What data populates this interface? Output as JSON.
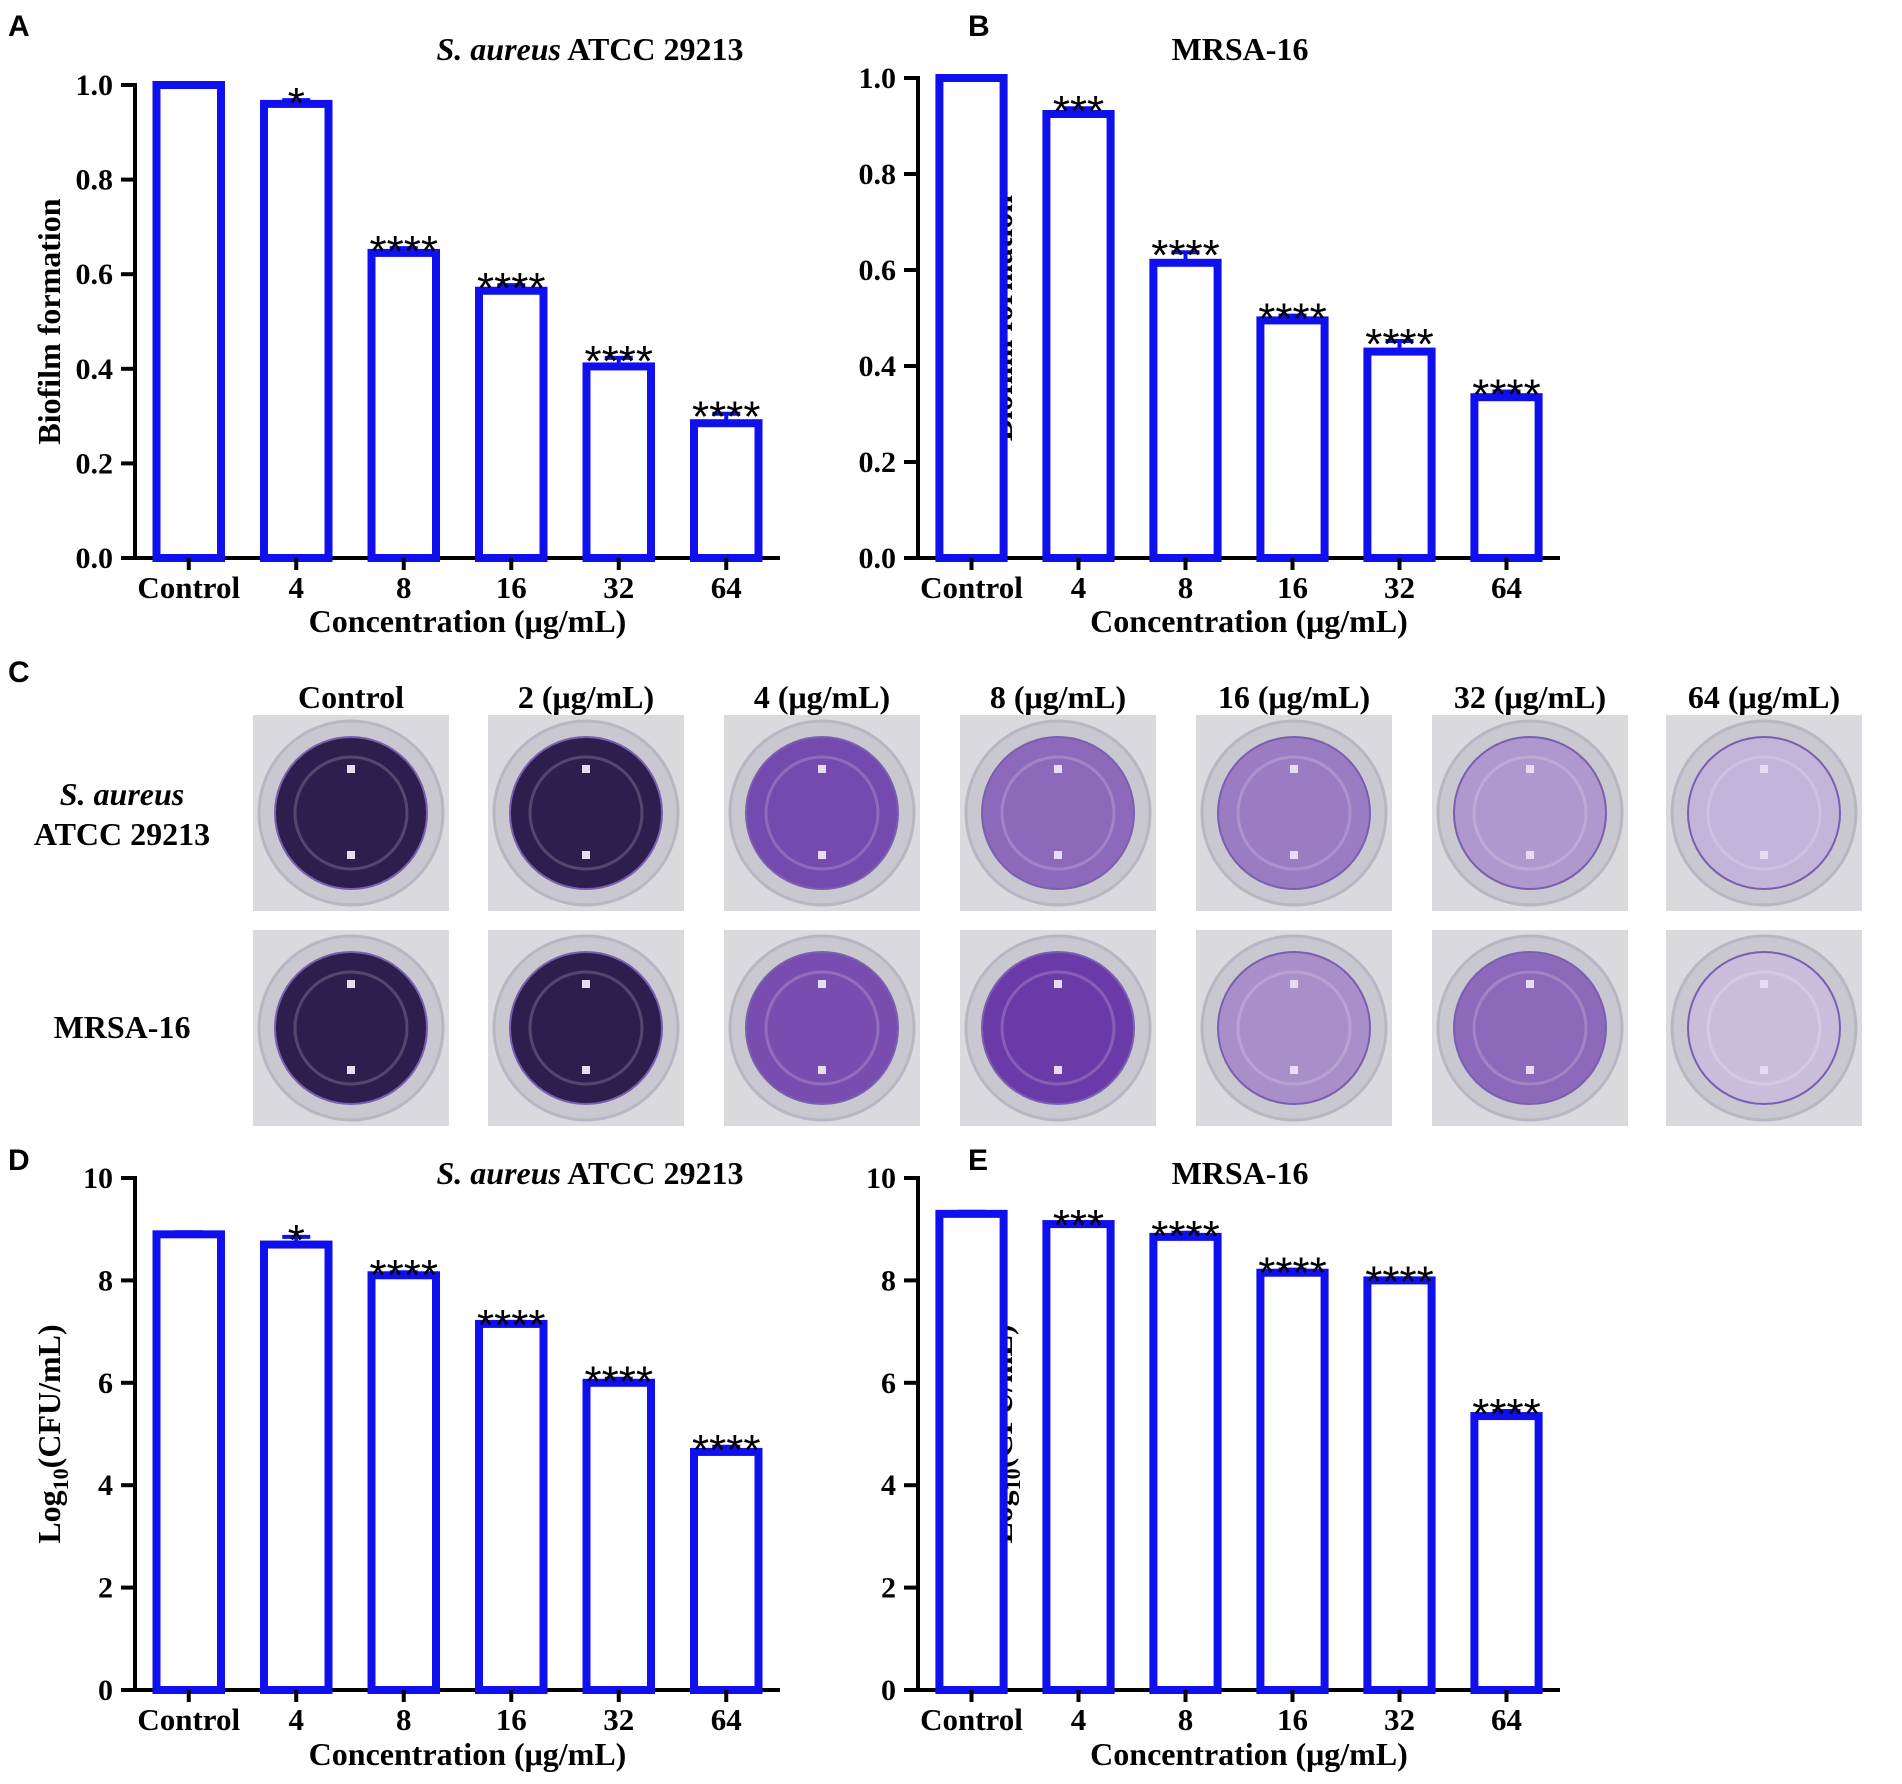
{
  "panel_letters": [
    "A",
    "B",
    "C",
    "D",
    "E"
  ],
  "colors": {
    "bar_stroke": "#1010ee",
    "axis": "#000000"
  },
  "chart_data": [
    {
      "letter": "A",
      "type": "bar",
      "title_italic": "S. aureus",
      "title_rest": " ATCC 29213",
      "xlabel": "Concentration (μg/mL)",
      "ylabel": "Biofilm formation",
      "categories": [
        "Control",
        "4",
        "8",
        "16",
        "32",
        "64"
      ],
      "values": [
        1.0,
        0.96,
        0.645,
        0.565,
        0.405,
        0.285
      ],
      "errors": [
        0.0,
        0.008,
        0.01,
        0.012,
        0.018,
        0.02
      ],
      "significance": [
        "",
        "*",
        "****",
        "****",
        "****",
        "****"
      ],
      "ylim": [
        0,
        1.0
      ],
      "yticks": [
        0.0,
        0.2,
        0.4,
        0.6,
        0.8,
        1.0
      ],
      "ytick_labels": [
        "0.0",
        "0.2",
        "0.4",
        "0.6",
        "0.8",
        "1.0"
      ]
    },
    {
      "letter": "B",
      "type": "bar",
      "title_italic": "",
      "title_rest": "MRSA-16",
      "xlabel": "Concentration (μg/mL)",
      "ylabel": "Biofilm formation",
      "categories": [
        "Control",
        "4",
        "8",
        "16",
        "32",
        "64"
      ],
      "values": [
        1.0,
        0.925,
        0.615,
        0.495,
        0.43,
        0.335
      ],
      "errors": [
        0.0,
        0.012,
        0.022,
        0.01,
        0.022,
        0.012
      ],
      "significance": [
        "",
        "***",
        "****",
        "****",
        "****",
        "****"
      ],
      "ylim": [
        0,
        1.0
      ],
      "yticks": [
        0.0,
        0.2,
        0.4,
        0.6,
        0.8,
        1.0
      ],
      "ytick_labels": [
        "0.0",
        "0.2",
        "0.4",
        "0.6",
        "0.8",
        "1.0"
      ]
    },
    {
      "letter": "D",
      "type": "bar",
      "title_italic": "S. aureus",
      "title_rest": " ATCC 29213",
      "xlabel": "Concentration (μg/mL)",
      "ylabel_main": "Log",
      "ylabel_sub": "10",
      "ylabel_rest": "(CFU/mL)",
      "categories": [
        "Control",
        "4",
        "8",
        "16",
        "32",
        "64"
      ],
      "values": [
        8.9,
        8.7,
        8.1,
        7.15,
        6.0,
        4.65
      ],
      "errors": [
        0.04,
        0.15,
        0.06,
        0.04,
        0.08,
        0.1
      ],
      "significance": [
        "",
        "*",
        "****",
        "****",
        "****",
        "****"
      ],
      "ylim": [
        0,
        10
      ],
      "yticks": [
        0,
        2,
        4,
        6,
        8,
        10
      ],
      "ytick_labels": [
        "0",
        "2",
        "4",
        "6",
        "8",
        "10"
      ]
    },
    {
      "letter": "E",
      "type": "bar",
      "title_italic": "",
      "title_rest": "MRSA-16",
      "xlabel": "Concentration (μg/mL)",
      "ylabel_main": "Log",
      "ylabel_sub": "10",
      "ylabel_rest": "(CFU/mL)",
      "categories": [
        "Control",
        "4",
        "8",
        "16",
        "32",
        "64"
      ],
      "values": [
        9.3,
        9.1,
        8.85,
        8.15,
        8.0,
        5.35
      ],
      "errors": [
        0.04,
        0.04,
        0.08,
        0.06,
        0.04,
        0.1
      ],
      "significance": [
        "",
        "***",
        "****",
        "****",
        "****",
        "****"
      ],
      "ylim": [
        0,
        10
      ],
      "yticks": [
        0,
        2,
        4,
        6,
        8,
        10
      ],
      "ytick_labels": [
        "0",
        "2",
        "4",
        "6",
        "8",
        "10"
      ]
    }
  ],
  "wells": {
    "columns": [
      "Control",
      "2 (μg/mL)",
      "4 (μg/mL)",
      "8 (μg/mL)",
      "16 (μg/mL)",
      "32 (μg/mL)",
      "64 (μg/mL)"
    ],
    "rows": [
      {
        "label_italic": "S. aureus",
        "label_rest": "ATCC 29213",
        "stain": [
          1.0,
          1.0,
          0.72,
          0.55,
          0.45,
          0.3,
          0.15
        ]
      },
      {
        "label_italic": "",
        "label_rest": "MRSA-16",
        "stain": [
          1.0,
          1.0,
          0.7,
          0.8,
          0.35,
          0.55,
          0.1
        ]
      }
    ]
  }
}
